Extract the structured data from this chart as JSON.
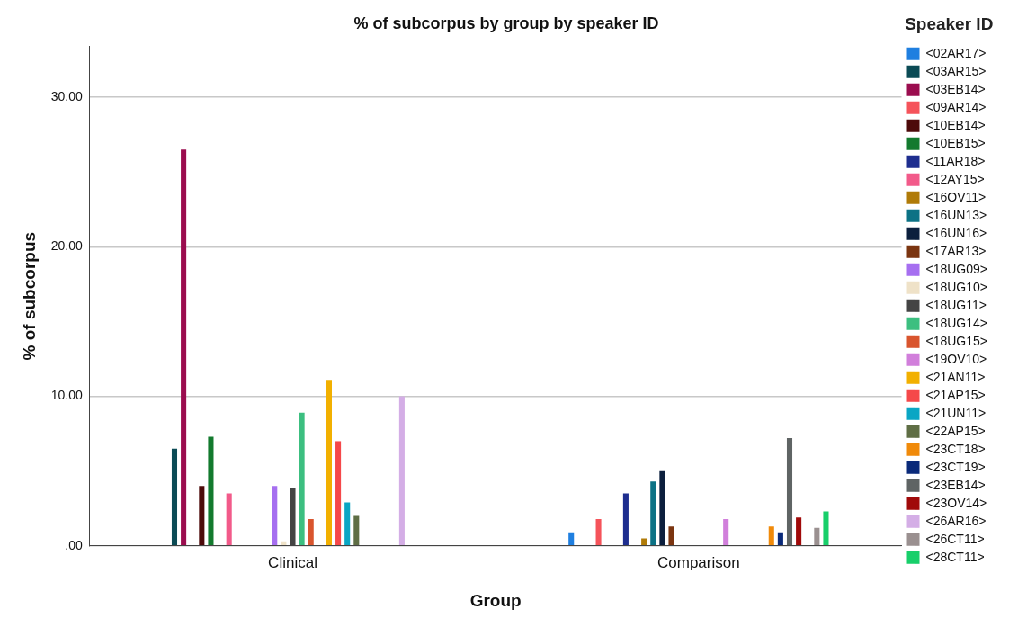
{
  "chart_data": {
    "type": "bar",
    "title": "% of subcorpus by group by speaker ID",
    "xlabel": "Group",
    "ylabel": "% of subcorpus",
    "legend_title": "Speaker ID",
    "categories": [
      "Clinical",
      "Comparison"
    ],
    "ylim": [
      0,
      33.4
    ],
    "yticks": [
      {
        "value": 0,
        "label": ".00"
      },
      {
        "value": 10,
        "label": "10.00"
      },
      {
        "value": 20,
        "label": "20.00"
      },
      {
        "value": 30,
        "label": "30.00"
      }
    ],
    "grid": "y",
    "legend": "right",
    "series": [
      {
        "name": "<02AR17>",
        "color": "#1f7fe0",
        "values": [
          null,
          0.9
        ]
      },
      {
        "name": "<03AR15>",
        "color": "#0b4b55",
        "values": [
          6.5,
          null
        ]
      },
      {
        "name": "<03EB14>",
        "color": "#9b0d4f",
        "values": [
          26.5,
          null
        ]
      },
      {
        "name": "<09AR14>",
        "color": "#f5535a",
        "values": [
          null,
          1.8
        ]
      },
      {
        "name": "<10EB14>",
        "color": "#4d0a0a",
        "values": [
          4.0,
          null
        ]
      },
      {
        "name": "<10EB15>",
        "color": "#137a2e",
        "values": [
          7.3,
          null
        ]
      },
      {
        "name": "<11AR18>",
        "color": "#1e2e8f",
        "values": [
          null,
          3.5
        ]
      },
      {
        "name": "<12AY15>",
        "color": "#f25a8a",
        "values": [
          3.5,
          null
        ]
      },
      {
        "name": "<16OV11>",
        "color": "#b07b08",
        "values": [
          null,
          0.5
        ]
      },
      {
        "name": "<16UN13>",
        "color": "#0c7285",
        "values": [
          null,
          4.3
        ]
      },
      {
        "name": "<16UN16>",
        "color": "#0c1f3d",
        "values": [
          null,
          5.0
        ]
      },
      {
        "name": "<17AR13>",
        "color": "#7b3510",
        "values": [
          null,
          1.3
        ]
      },
      {
        "name": "<18UG09>",
        "color": "#a66ff0",
        "values": [
          4.0,
          null
        ]
      },
      {
        "name": "<18UG10>",
        "color": "#efe2c8",
        "values": [
          0.3,
          null
        ]
      },
      {
        "name": "<18UG11>",
        "color": "#444444",
        "values": [
          3.9,
          null
        ]
      },
      {
        "name": "<18UG14>",
        "color": "#3cbf80",
        "values": [
          8.9,
          null
        ]
      },
      {
        "name": "<18UG15>",
        "color": "#d9552e",
        "values": [
          1.8,
          null
        ]
      },
      {
        "name": "<19OV10>",
        "color": "#d17fdb",
        "values": [
          null,
          1.8
        ]
      },
      {
        "name": "<21AN11>",
        "color": "#f2b000",
        "values": [
          11.1,
          null
        ]
      },
      {
        "name": "<21AP15>",
        "color": "#f5484a",
        "values": [
          7.0,
          null
        ]
      },
      {
        "name": "<21UN11>",
        "color": "#0aa6c4",
        "values": [
          2.9,
          null
        ]
      },
      {
        "name": "<22AP15>",
        "color": "#5f6e45",
        "values": [
          2.0,
          null
        ]
      },
      {
        "name": "<23CT18>",
        "color": "#f08a0a",
        "values": [
          null,
          1.3
        ]
      },
      {
        "name": "<23CT19>",
        "color": "#0a2a7a",
        "values": [
          null,
          0.9
        ]
      },
      {
        "name": "<23EB14>",
        "color": "#5f6464",
        "values": [
          null,
          7.2
        ]
      },
      {
        "name": "<23OV14>",
        "color": "#a00a0a",
        "values": [
          null,
          1.9
        ]
      },
      {
        "name": "<26AR16>",
        "color": "#d4aee6",
        "values": [
          10.0,
          null
        ]
      },
      {
        "name": "<26CT11>",
        "color": "#9a9090",
        "values": [
          null,
          1.2
        ]
      },
      {
        "name": "<28CT11>",
        "color": "#18cf6a",
        "values": [
          null,
          2.3
        ]
      }
    ]
  }
}
